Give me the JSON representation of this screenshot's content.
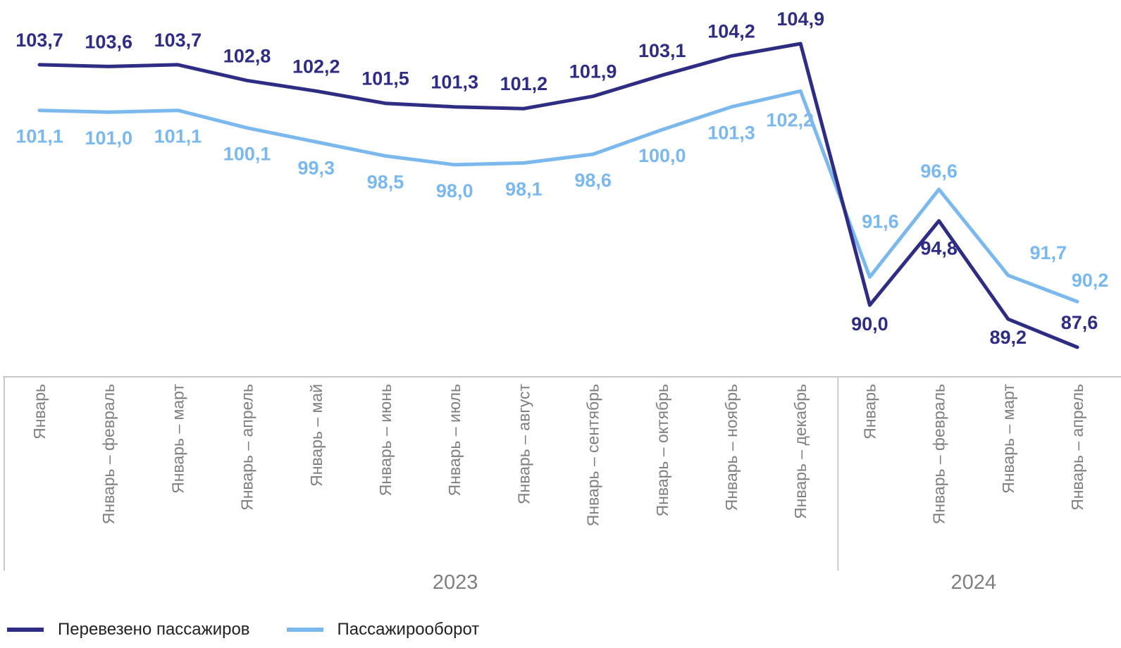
{
  "chart_data": {
    "type": "line",
    "categories": [
      "Январь",
      "Январь – февраль",
      "Январь – март",
      "Январь – апрель",
      "Январь – май",
      "Январь – июнь",
      "Январь – июль",
      "Январь – август",
      "Январь – сентябрь",
      "Январь – октябрь",
      "Январь – ноябрь",
      "Январь – декабрь",
      "Январь",
      "Январь – февраль",
      "Январь – март",
      "Январь – апрель"
    ],
    "groups": [
      {
        "label": "2023",
        "count": 12
      },
      {
        "label": "2024",
        "count": 4
      }
    ],
    "series": [
      {
        "name": "Перевезено пассажиров",
        "color": "#2e2d83",
        "values": [
          103.7,
          103.6,
          103.7,
          102.8,
          102.2,
          101.5,
          101.3,
          101.2,
          101.9,
          103.1,
          104.2,
          104.9,
          90.0,
          94.8,
          89.2,
          87.6
        ],
        "labels": [
          "103,7",
          "103,6",
          "103,7",
          "102,8",
          "102,2",
          "101,5",
          "101,3",
          "101,2",
          "101,9",
          "103,1",
          "104,2",
          "104,9",
          "90,0",
          "94,8",
          "89,2",
          "87,6"
        ]
      },
      {
        "name": "Пассажирооборот",
        "color": "#7bb8ee",
        "values": [
          101.1,
          101.0,
          101.1,
          100.1,
          99.3,
          98.5,
          98.0,
          98.1,
          98.6,
          100.0,
          101.3,
          102.2,
          91.6,
          96.6,
          91.7,
          90.2
        ],
        "labels": [
          "101,1",
          "101,0",
          "101,1",
          "100,1",
          "99,3",
          "98,5",
          "98,0",
          "98,1",
          "98,6",
          "100,0",
          "101,3",
          "102,2",
          "91,6",
          "96,6",
          "91,7",
          "90,2"
        ]
      }
    ],
    "axis_line_color": "#c8c8c8",
    "grid": false,
    "legend_position": "bottom-left"
  }
}
